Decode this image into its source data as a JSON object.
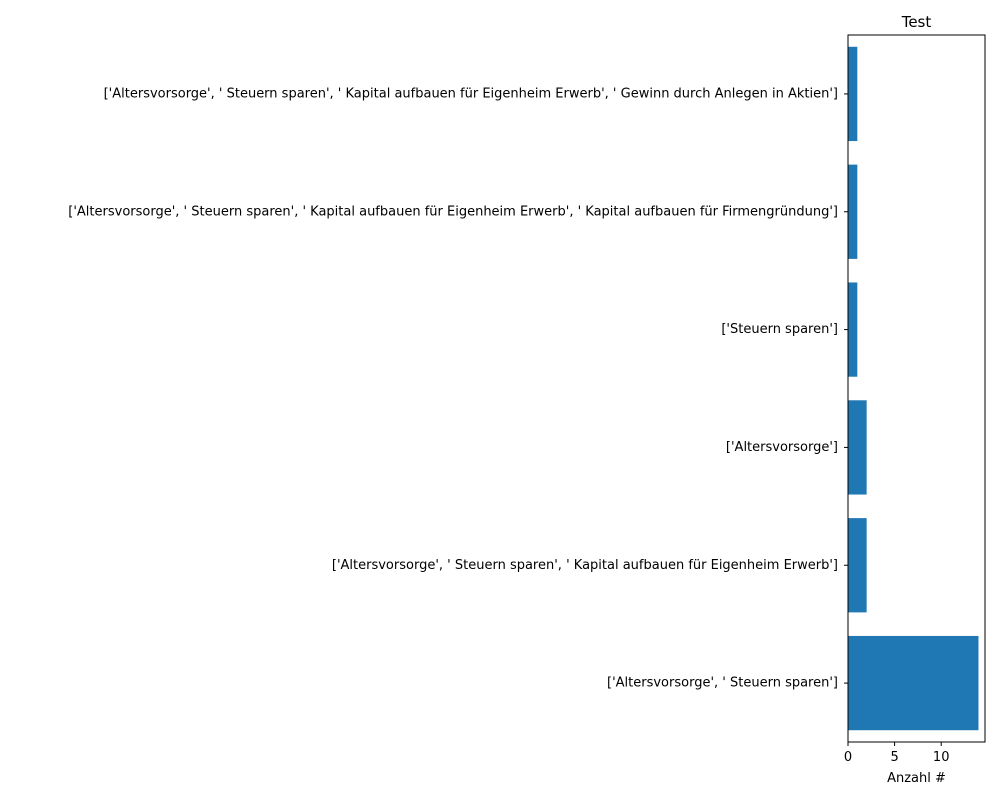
{
  "chart_data": {
    "type": "bar",
    "orientation": "horizontal",
    "title": "Test",
    "xlabel": "Anzahl #",
    "ylabel": "",
    "categories": [
      "['Altersvorsorge', ' Steuern sparen', ' Kapital aufbauen für Eigenheim Erwerb', ' Gewinn durch Anlegen in Aktien']",
      "['Altersvorsorge', ' Steuern sparen', ' Kapital aufbauen für Eigenheim Erwerb', ' Kapital aufbauen für Firmengründung']",
      "['Steuern sparen']",
      "['Altersvorsorge']",
      "['Altersvorsorge', ' Steuern sparen', ' Kapital aufbauen für Eigenheim Erwerb']",
      "['Altersvorsorge', ' Steuern sparen']"
    ],
    "values": [
      1,
      1,
      1,
      2,
      2,
      14
    ],
    "xlim": [
      0,
      14.7
    ],
    "xticks": [
      0,
      5,
      10
    ],
    "grid": false,
    "bar_color": "#1f77b4"
  }
}
